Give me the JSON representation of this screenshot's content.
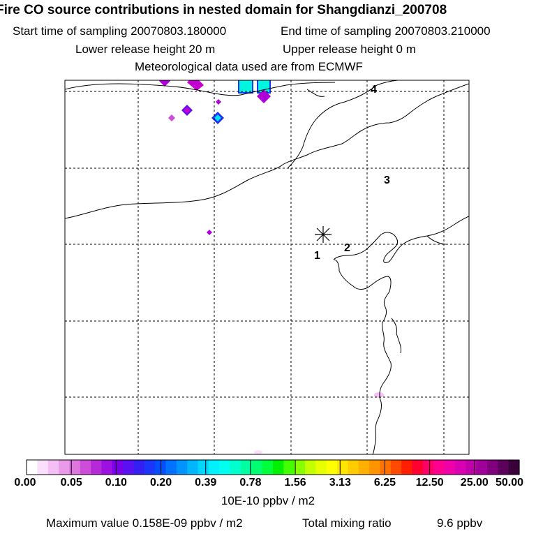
{
  "title": "Fire CO source contributions in nested domain for Shangdianzi_200708",
  "header": {
    "start_label": "Start time of sampling 20070803.180000",
    "end_label": "End time of sampling 20070803.210000",
    "lower_label": "Lower release height   20 m",
    "upper_label": "Upper release height    0 m",
    "met_label": "Meteorological data used are from ECMWF"
  },
  "chart_data": {
    "type": "heatmap",
    "title": "Fire CO source contributions in nested domain for Shangdianzi_200708",
    "grid": true,
    "receptor_marker": "asterisk",
    "point_labels": [
      "1",
      "2",
      "3",
      "4"
    ],
    "colorbar": {
      "tick_labels": [
        "0.00",
        "0.05",
        "0.10",
        "0.20",
        "0.39",
        "0.78",
        "1.56",
        "3.13",
        "6.25",
        "12.50",
        "25.00",
        "50.00"
      ],
      "colors": [
        "#ffffff",
        "#fbe0fb",
        "#f4bff4",
        "#e99be9",
        "#dd77dd",
        "#cc4dd8",
        "#b52ad6",
        "#9b11e0",
        "#7a00ea",
        "#5a10f0",
        "#3520f4",
        "#1a36f8",
        "#0050ff",
        "#0072ff",
        "#0094ff",
        "#00b6ff",
        "#00d6ff",
        "#00f0ff",
        "#00ffee",
        "#00ffcc",
        "#00ffa0",
        "#00ff70",
        "#00ff3a",
        "#00f000",
        "#44ff00",
        "#88ff00",
        "#c4ff00",
        "#e8ff00",
        "#ffff00",
        "#ffe600",
        "#ffcc00",
        "#ffb000",
        "#ff9400",
        "#ff7200",
        "#ff4a00",
        "#ff1e00",
        "#ff0030",
        "#ff0066",
        "#ff0090",
        "#f000a8",
        "#d800b0",
        "#c000aa",
        "#a0009a",
        "#80007e",
        "#5c005c",
        "#3a003a"
      ],
      "units": "10E-10 ppbv / m2"
    }
  },
  "footer": {
    "max_label": "Maximum value  0.158E-09 ppbv / m2",
    "total_label": "Total mixing ratio",
    "total_value": "9.6 ppbv"
  }
}
